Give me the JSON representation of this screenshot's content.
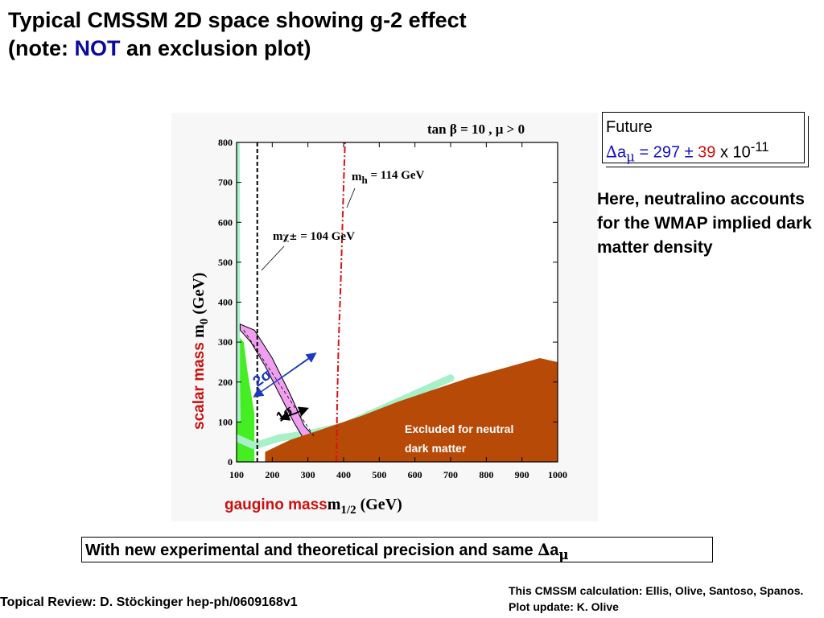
{
  "slide": {
    "title_line1": "Typical CMSSM 2D space showing g-2 effect",
    "title_line2_pre": "(note: ",
    "title_line2_not": "NOT",
    "title_line2_post": " an exclusion plot)",
    "future": {
      "label": "Future",
      "delta": "∆",
      "a": "a",
      "mu": "μ",
      "eq": " = 297 ",
      "pm": "±",
      "err": " 39",
      "times": " x 10",
      "exp": "-11"
    },
    "note": "Here, neutralino accounts for the WMAP implied dark matter density",
    "precision_text": "With new experimental and theoretical precision and same ",
    "precision_delta": "∆",
    "precision_a": "a",
    "precision_mu": "μ",
    "footer_left": "Topical Review: D. Stöckinger hep-ph/0609168v1",
    "footer_right": "This CMSSM calculation: Ellis, Olive, Santoso, Spanos.  Plot update: K. Olive"
  },
  "chart_data": {
    "type": "area",
    "title": "tan β = 10 ,  μ > 0",
    "xlabel_main": "m",
    "xlabel_sub": "1/2",
    "xlabel_unit": " (GeV)",
    "xlabel_prefix": "gaugino mass",
    "ylabel_main": "m",
    "ylabel_sub": "0",
    "ylabel_unit": " (GeV)",
    "ylabel_prefix": "scalar mass ",
    "xlim": [
      100,
      1000
    ],
    "ylim": [
      0,
      800
    ],
    "x_ticks": [
      100,
      200,
      300,
      400,
      500,
      600,
      700,
      800,
      900,
      1000
    ],
    "y_ticks": [
      0,
      100,
      200,
      300,
      400,
      500,
      600,
      700,
      800
    ],
    "annotations": {
      "mh_label_main": "m",
      "mh_label_sub": "h",
      "mh_label_value": " = 114 GeV",
      "mchi_label_main": "m",
      "mchi_label_sub": "χ±",
      "mchi_label_value": " = 104 GeV",
      "excluded_line1": "Excluded for neutral",
      "excluded_line2": "dark matter",
      "two_sigma": "2σ",
      "one_sigma": "1σ"
    },
    "colors": {
      "excluded": "#b84a08",
      "g2_band": "#f09ef0",
      "wmap_strip": "#a8f0c8",
      "green_region": "#44ee22",
      "mh_line": "#dd1111",
      "label_red": "#cc1010",
      "arrow_blue": "#1a3ac0"
    },
    "series": [
      {
        "name": "m_chi± = 104 GeV",
        "x": [
          158,
          158
        ],
        "y": [
          0,
          800
        ]
      },
      {
        "name": "m_h = 114 GeV",
        "x": [
          380,
          382,
          386,
          392,
          397,
          401,
          404
        ],
        "y": [
          0,
          150,
          300,
          450,
          600,
          720,
          800
        ]
      },
      {
        "name": "Excluded for neutral dark matter",
        "x": [
          180,
          250,
          350,
          450,
          550,
          650,
          750,
          850,
          950,
          1000
        ],
        "y": [
          25,
          55,
          85,
          115,
          150,
          180,
          210,
          235,
          260,
          250
        ]
      },
      {
        "name": "g-2 2σ band",
        "x": [
          110,
          150,
          200,
          250,
          290,
          320,
          330,
          300,
          260,
          220,
          180,
          140,
          110
        ],
        "y": [
          345,
          330,
          260,
          170,
          90,
          60,
          45,
          40,
          100,
          170,
          240,
          300,
          330
        ]
      },
      {
        "name": "WMAP strip",
        "x": [
          100,
          150,
          220,
          300,
          400,
          500,
          600,
          700
        ],
        "y": [
          60,
          40,
          60,
          70,
          90,
          130,
          170,
          210
        ]
      }
    ]
  }
}
